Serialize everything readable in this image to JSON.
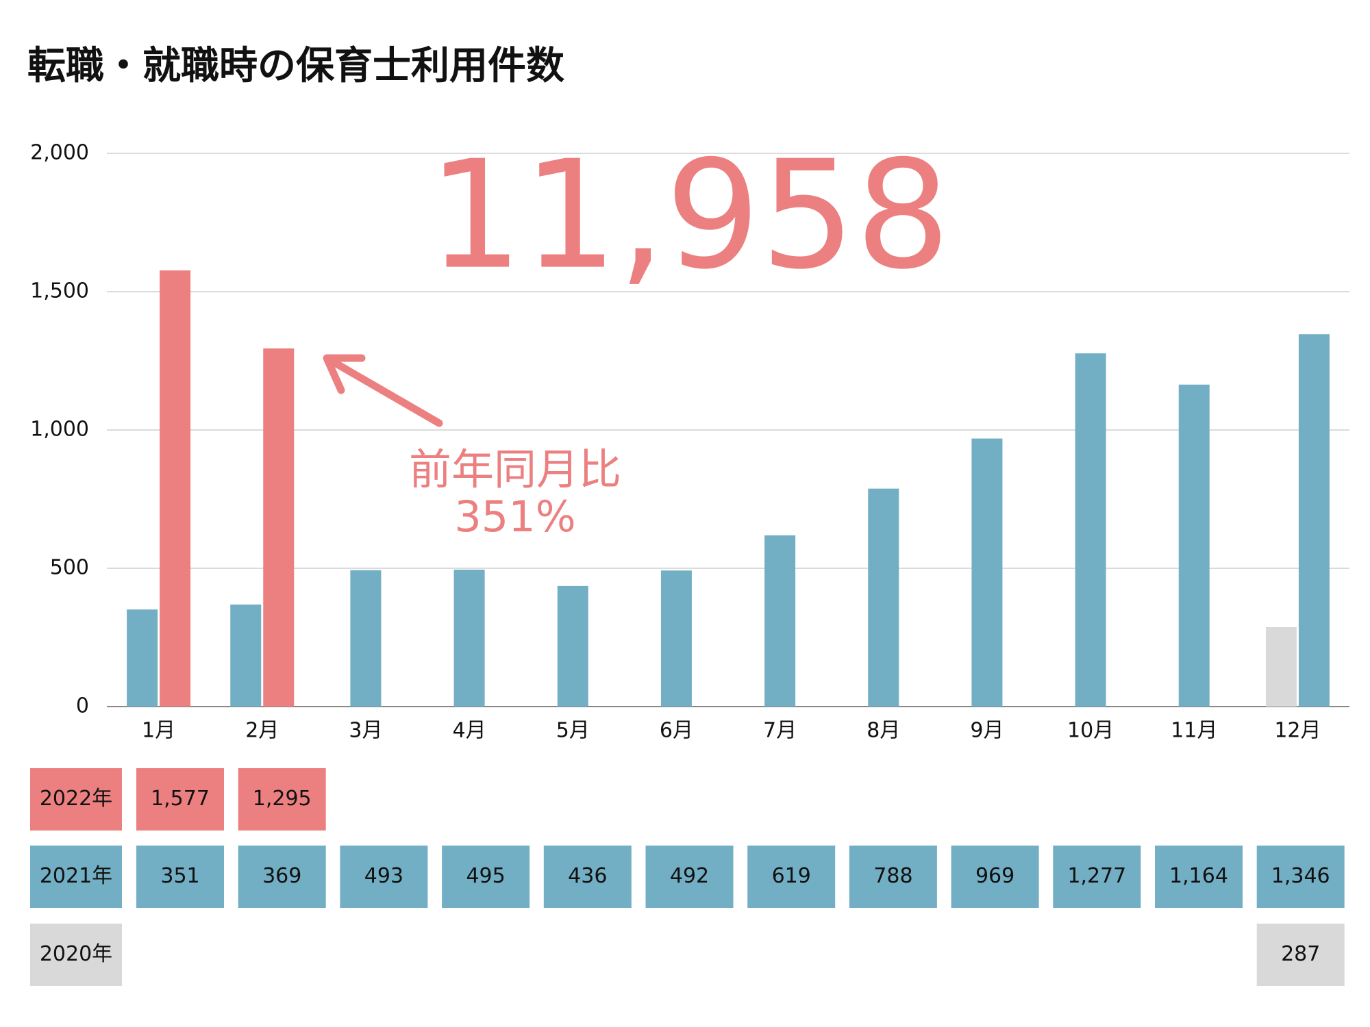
{
  "chart_data": {
    "type": "bar",
    "title": "転職・就職時の保育士利用件数",
    "annotations": [
      "11,958",
      "前年同月比",
      "351%"
    ],
    "categories": [
      "1月",
      "2月",
      "3月",
      "4月",
      "5月",
      "6月",
      "7月",
      "8月",
      "9月",
      "10月",
      "11月",
      "12月"
    ],
    "series": [
      {
        "name": "2022年",
        "color": "#ec8080",
        "values": [
          1577,
          1295,
          null,
          null,
          null,
          null,
          null,
          null,
          null,
          null,
          null,
          null
        ],
        "value_labels": [
          "1,577",
          "1,295",
          null,
          null,
          null,
          null,
          null,
          null,
          null,
          null,
          null,
          null
        ]
      },
      {
        "name": "2021年",
        "color": "#72afc4",
        "values": [
          351,
          369,
          493,
          495,
          436,
          492,
          619,
          788,
          969,
          1277,
          1164,
          1346
        ],
        "value_labels": [
          "351",
          "369",
          "493",
          "495",
          "436",
          "492",
          "619",
          "788",
          "969",
          "1,277",
          "1,164",
          "1,346"
        ]
      },
      {
        "name": "2020年",
        "color": "#d9d9d9",
        "values": [
          null,
          null,
          null,
          null,
          null,
          null,
          null,
          null,
          null,
          null,
          null,
          287
        ],
        "value_labels": [
          null,
          null,
          null,
          null,
          null,
          null,
          null,
          null,
          null,
          null,
          null,
          "287"
        ]
      }
    ],
    "ylim": [
      0,
      2000
    ],
    "yticks": [
      0,
      500,
      {
        "value": 1000,
        "label": "1,000"
      },
      {
        "value": 1500,
        "label": "1,500"
      },
      {
        "value": 2000,
        "label": "2,000"
      }
    ],
    "grid": true
  }
}
